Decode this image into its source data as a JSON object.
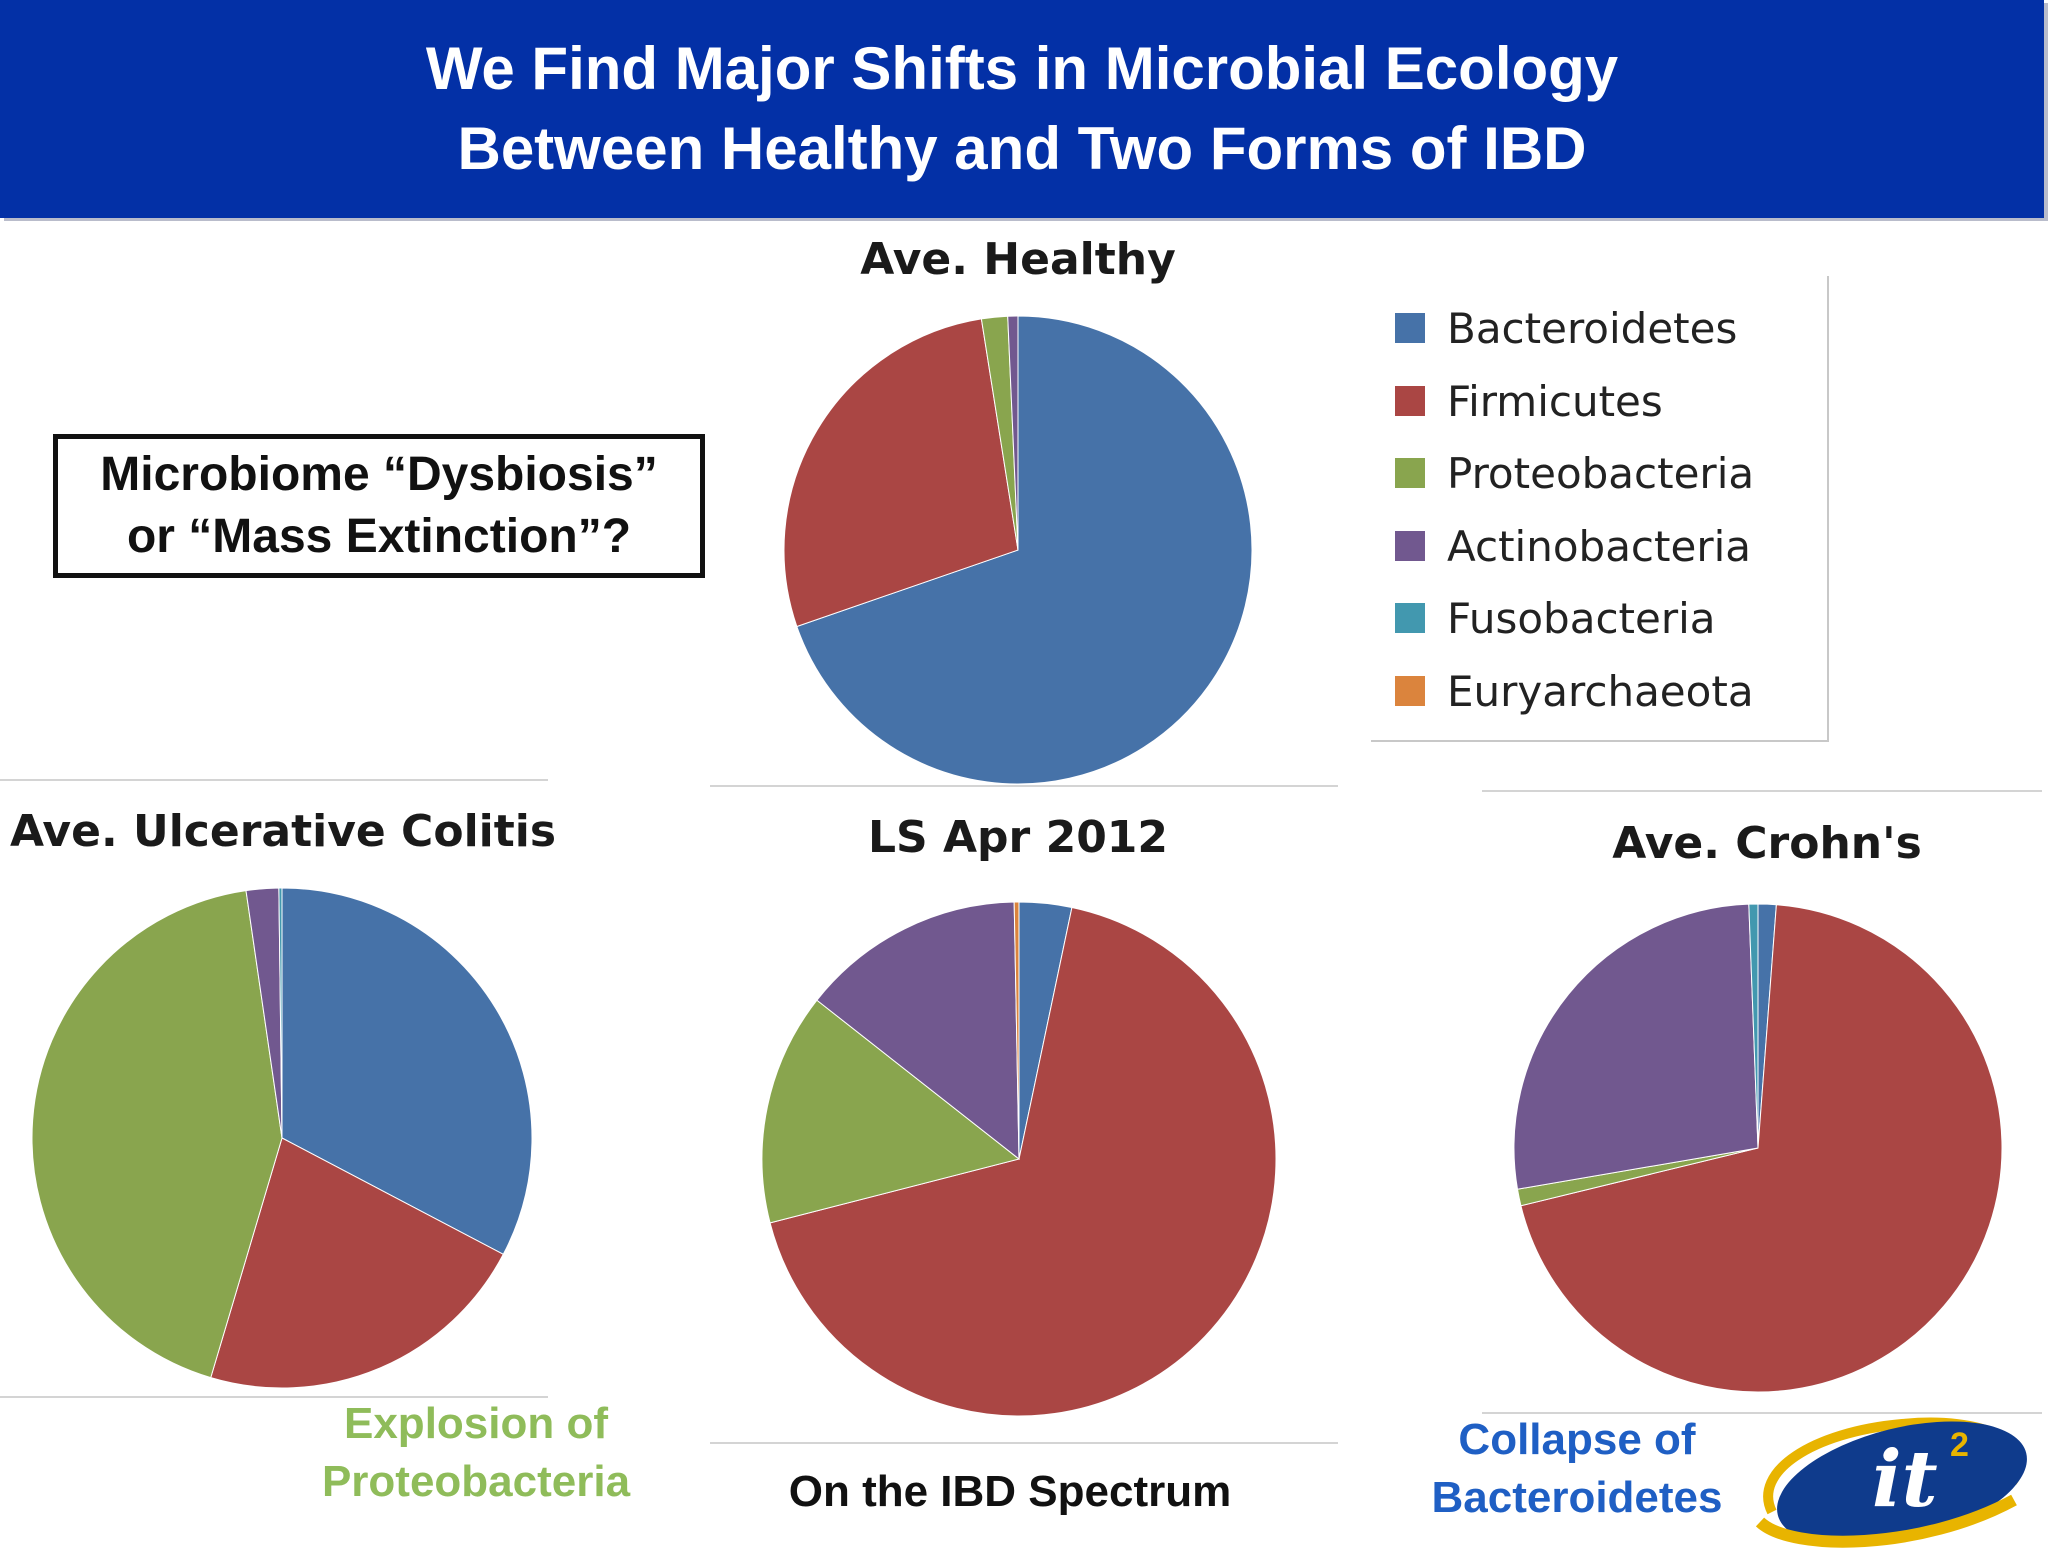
{
  "header": {
    "title_line1": "We Find Major Shifts in Microbial Ecology",
    "title_line2": "Between Healthy and Two Forms of IBD"
  },
  "callout": {
    "line1": "Microbiome “Dysbiosis”",
    "line2": "or “Mass Extinction”?"
  },
  "legend": [
    {
      "label": "Bacteroidetes",
      "color": "#4672a8"
    },
    {
      "label": "Firmicutes",
      "color": "#aa4644"
    },
    {
      "label": "Proteobacteria",
      "color": "#89a54e"
    },
    {
      "label": "Actinobacteria",
      "color": "#71588f"
    },
    {
      "label": "Fusobacteria",
      "color": "#4298af"
    },
    {
      "label": "Euryarchaeota",
      "color": "#db843d"
    }
  ],
  "chart_data": [
    {
      "type": "pie",
      "title": "Ave. Healthy",
      "categories": [
        "Bacteroidetes",
        "Firmicutes",
        "Proteobacteria",
        "Actinobacteria",
        "Fusobacteria",
        "Euryarchaeota"
      ],
      "values": [
        69.7,
        27.8,
        1.8,
        0.7,
        0.0,
        0.0
      ]
    },
    {
      "type": "pie",
      "title": "Ave. Ulcerative Colitis",
      "categories": [
        "Bacteroidetes",
        "Firmicutes",
        "Proteobacteria",
        "Actinobacteria",
        "Fusobacteria",
        "Euryarchaeota"
      ],
      "values": [
        32.7,
        21.9,
        43.1,
        2.1,
        0.2,
        0.0
      ]
    },
    {
      "type": "pie",
      "title": "LS Apr 2012",
      "categories": [
        "Bacteroidetes",
        "Firmicutes",
        "Proteobacteria",
        "Actinobacteria",
        "Fusobacteria",
        "Euryarchaeota"
      ],
      "values": [
        3.3,
        67.7,
        14.6,
        14.1,
        0.0,
        0.3
      ]
    },
    {
      "type": "pie",
      "title": "Ave. Crohn's",
      "categories": [
        "Bacteroidetes",
        "Firmicutes",
        "Proteobacteria",
        "Actinobacteria",
        "Fusobacteria",
        "Euryarchaeota"
      ],
      "values": [
        1.2,
        70.0,
        1.1,
        27.1,
        0.6,
        0.0
      ]
    }
  ],
  "captions": {
    "uc_line1": "Explosion of",
    "uc_line2": "Proteobacteria",
    "uc_color": "#8fbc5a",
    "ls": "On the IBD Spectrum",
    "cd_line1": "Collapse of",
    "cd_line2": "Bacteroidetes",
    "cd_color": "#1f5fc4"
  },
  "logo": {
    "text": "it",
    "superscript": "2"
  }
}
